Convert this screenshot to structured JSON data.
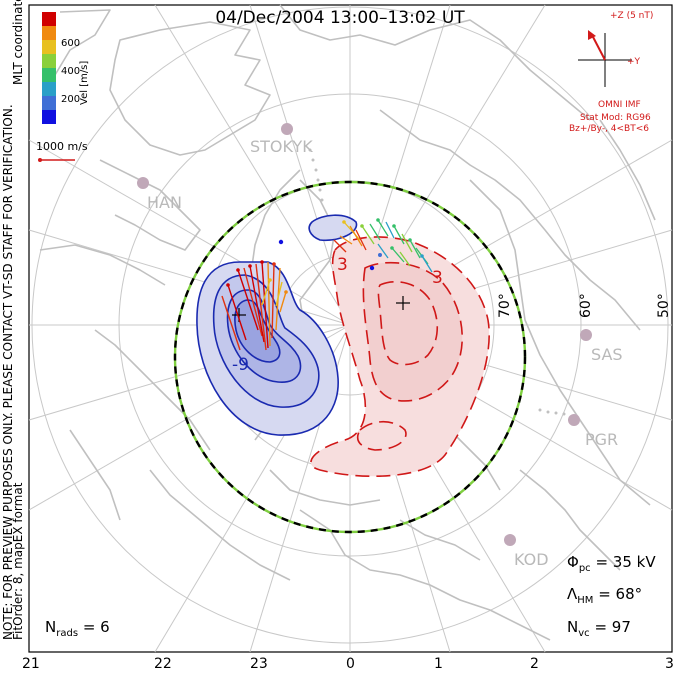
{
  "title": "04/Dec/2004 13:00–13:02 UT",
  "side_notes": {
    "coordinates": "MLT coordinates",
    "preview_note": "NOTE: FOR PREVIEW PURPOSES ONLY. PLEASE CONTACT VT-SD STAFF FOR VERIFICATION.",
    "fit_order": "FitOrder: 8, mapEX format"
  },
  "velocity_scale": {
    "label": "Vel [m/s]",
    "ticks": [
      "600",
      "400",
      "200"
    ],
    "colors": [
      "#1010e0",
      "#3f6fd6",
      "#2aa0c8",
      "#35c06a",
      "#8ad03a",
      "#e8c020",
      "#f08a10",
      "#e03010",
      "#d00000"
    ]
  },
  "vector_reference": {
    "label": "1000 m/s"
  },
  "imf": {
    "axis_z": "+Z (5 nT)",
    "axis_y": "+Y",
    "source": "OMNI IMF",
    "model_line1": "Stat Mod: RG96",
    "model_line2": "Bz+/By-, 4<BT<6"
  },
  "latitude_labels": [
    "70°",
    "60°",
    "50°"
  ],
  "stations": [
    "STOKYK",
    "HAN",
    "SAS",
    "PGR",
    "KOD"
  ],
  "contour_labels": [
    "-9",
    "3",
    "3"
  ],
  "stats": {
    "phi_pc_symbol": "Φ",
    "phi_pc_sub": "pc",
    "phi_pc_value": "= 35 kV",
    "lambda_hm_symbol": "Λ",
    "lambda_hm_sub": "HM",
    "lambda_hm_value": "= 68°",
    "n_vc_symbol": "N",
    "n_vc_sub": "vc",
    "n_vc_value": "= 97",
    "n_rads_symbol": "N",
    "n_rads_sub": "rads",
    "n_rads_value": "= 6"
  },
  "mlt_hours": [
    "21",
    "22",
    "23",
    "0",
    "1",
    "2",
    "3"
  ],
  "colors": {
    "land": "#c0c0c0",
    "grid": "#c8c8c8",
    "negative_fill": "#d6d9f1",
    "negative_line": "#1a2ab0",
    "positive_fill": "#f7dede",
    "positive_line": "#d01818",
    "hmb_dash_a": "#000000",
    "hmb_dash_b": "#7fcf40",
    "annotation_red": "#d21a1a"
  }
}
